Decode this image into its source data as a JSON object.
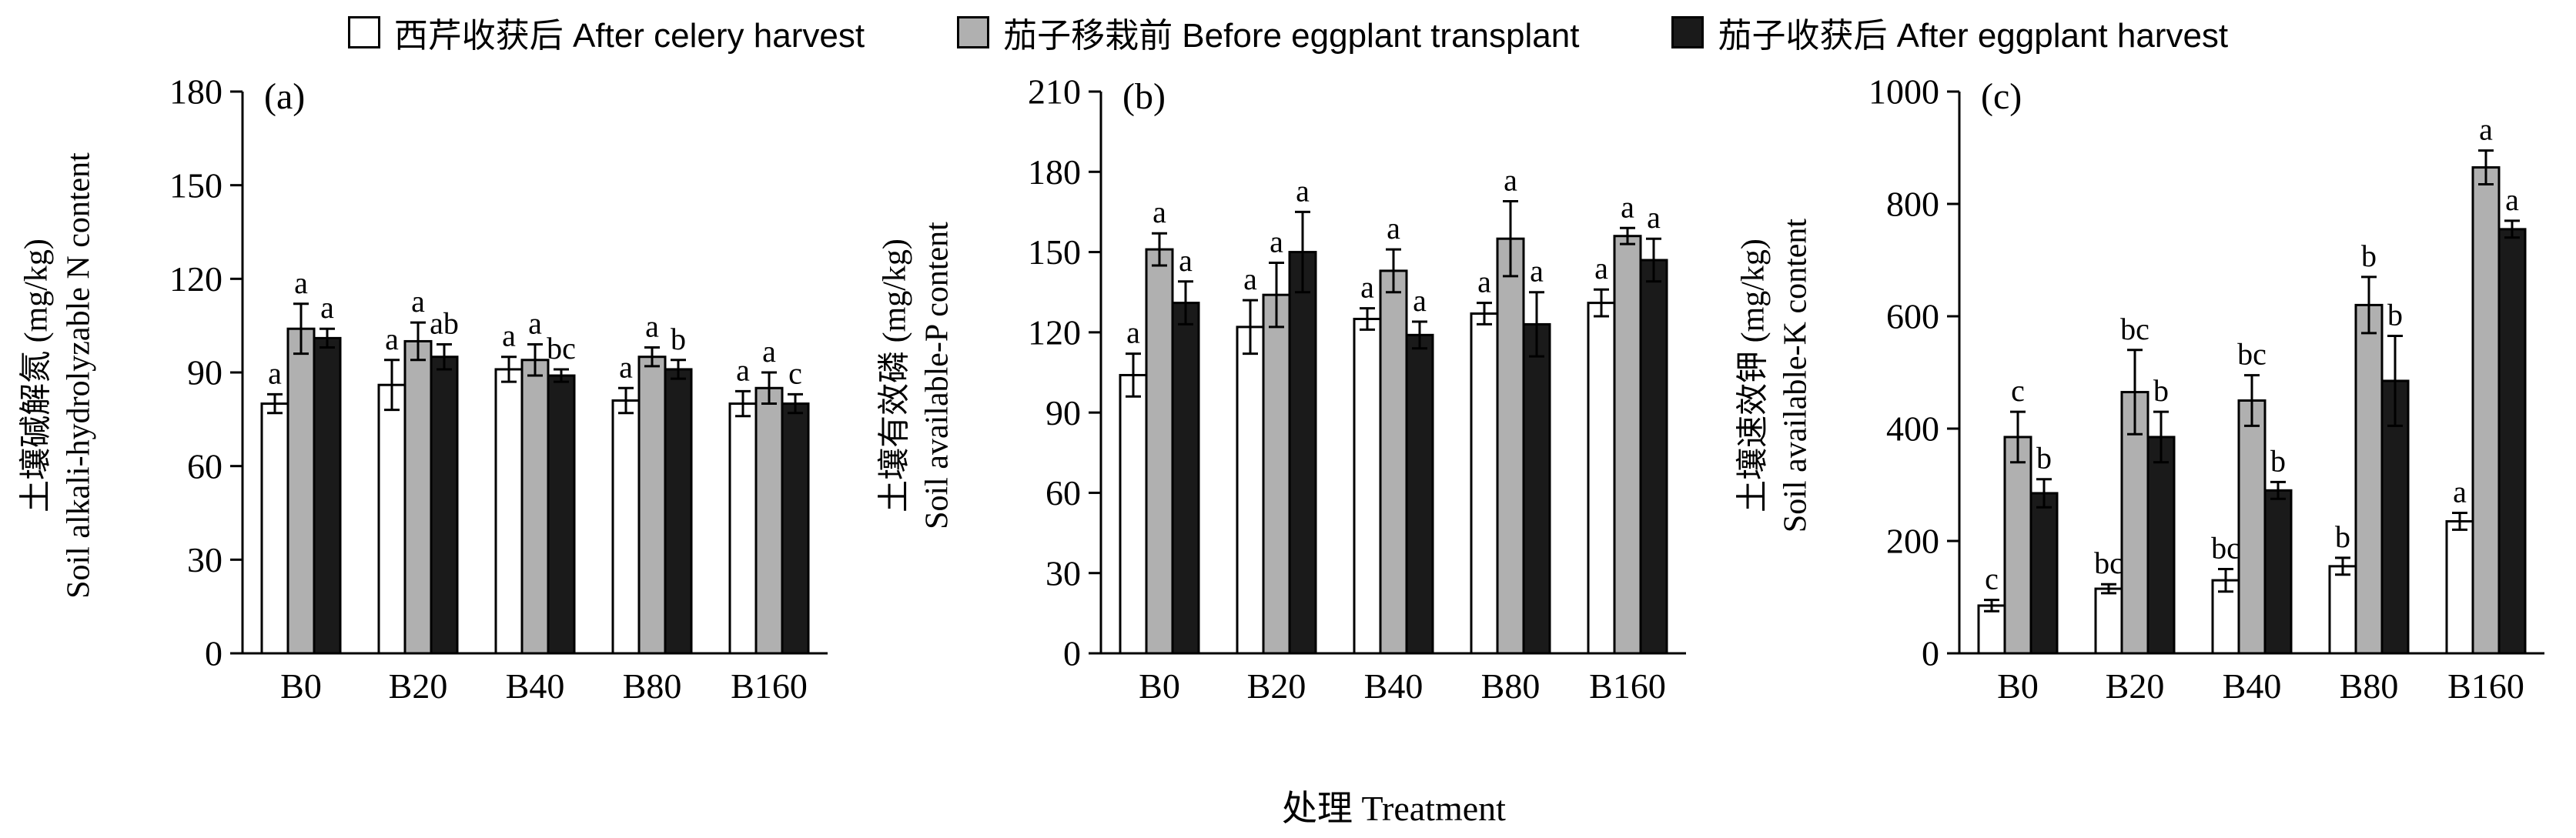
{
  "legend": {
    "items": [
      {
        "label": "西芹收获后 After celery harvest",
        "color": "#ffffff"
      },
      {
        "label": "茄子移栽前 Before eggplant transplant",
        "color": "#b0b0b0"
      },
      {
        "label": "茄子收获后 After eggplant harvest",
        "color": "#1a1a1a"
      }
    ]
  },
  "xtitle": "处理 Treatment",
  "chart_data": [
    {
      "type": "bar",
      "panel_label": "(a)",
      "ylabel_cn": "土壤碱解氮 (mg/kg)",
      "ylabel_en": "Soil alkali-hydrolyzable N content",
      "categories": [
        "B0",
        "B20",
        "B40",
        "B80",
        "B160"
      ],
      "ylim": [
        0,
        180
      ],
      "ytick_step": 30,
      "grid": false,
      "legend_position": "top",
      "series": [
        {
          "name": "西芹收获后 After celery harvest",
          "fill": "#ffffff",
          "values": [
            80,
            86,
            91,
            81,
            80
          ],
          "errors": [
            3,
            8,
            4,
            4,
            4
          ],
          "letters": [
            "a",
            "a",
            "a",
            "a",
            "a"
          ]
        },
        {
          "name": "茄子移栽前 Before eggplant transplant",
          "fill": "#b0b0b0",
          "values": [
            104,
            100,
            94,
            95,
            85
          ],
          "errors": [
            8,
            6,
            5,
            3,
            5
          ],
          "letters": [
            "a",
            "a",
            "a",
            "a",
            "a"
          ]
        },
        {
          "name": "茄子收获后 After eggplant harvest",
          "fill": "#1a1a1a",
          "values": [
            101,
            95,
            89,
            91,
            80
          ],
          "errors": [
            3,
            4,
            2,
            3,
            3
          ],
          "letters": [
            "a",
            "ab",
            "bc",
            "b",
            "c"
          ]
        }
      ]
    },
    {
      "type": "bar",
      "panel_label": "(b)",
      "ylabel_cn": "土壤有效磷 (mg/kg)",
      "ylabel_en": "Soil available-P content",
      "categories": [
        "B0",
        "B20",
        "B40",
        "B80",
        "B160"
      ],
      "ylim": [
        0,
        210
      ],
      "ytick_step": 30,
      "grid": false,
      "legend_position": "top",
      "series": [
        {
          "name": "西芹收获后 After celery harvest",
          "fill": "#ffffff",
          "values": [
            104,
            122,
            125,
            127,
            131
          ],
          "errors": [
            8,
            10,
            4,
            4,
            5
          ],
          "letters": [
            "a",
            "a",
            "a",
            "a",
            "a"
          ]
        },
        {
          "name": "茄子移栽前 Before eggplant transplant",
          "fill": "#b0b0b0",
          "values": [
            151,
            134,
            143,
            155,
            156
          ],
          "errors": [
            6,
            12,
            8,
            14,
            3
          ],
          "letters": [
            "a",
            "a",
            "a",
            "a",
            "a"
          ]
        },
        {
          "name": "茄子收获后 After eggplant harvest",
          "fill": "#1a1a1a",
          "values": [
            131,
            150,
            119,
            123,
            147
          ],
          "errors": [
            8,
            15,
            5,
            12,
            8
          ],
          "letters": [
            "a",
            "a",
            "a",
            "a",
            "a"
          ]
        }
      ]
    },
    {
      "type": "bar",
      "panel_label": "(c)",
      "ylabel_cn": "土壤速效钾 (mg/kg)",
      "ylabel_en": "Soil available-K content",
      "categories": [
        "B0",
        "B20",
        "B40",
        "B80",
        "B160"
      ],
      "ylim": [
        0,
        1000
      ],
      "ytick_step": 200,
      "grid": false,
      "legend_position": "top",
      "series": [
        {
          "name": "西芹收获后 After celery harvest",
          "fill": "#ffffff",
          "values": [
            85,
            115,
            130,
            155,
            235
          ],
          "errors": [
            10,
            8,
            20,
            15,
            15
          ],
          "letters": [
            "c",
            "bc",
            "bc",
            "b",
            "a"
          ]
        },
        {
          "name": "茄子移栽前 Before eggplant transplant",
          "fill": "#b0b0b0",
          "values": [
            385,
            465,
            450,
            620,
            865
          ],
          "errors": [
            45,
            75,
            45,
            50,
            30
          ],
          "letters": [
            "c",
            "bc",
            "bc",
            "b",
            "a"
          ]
        },
        {
          "name": "茄子收获后 After eggplant harvest",
          "fill": "#1a1a1a",
          "values": [
            285,
            385,
            290,
            485,
            755
          ],
          "errors": [
            25,
            45,
            15,
            80,
            15
          ],
          "letters": [
            "b",
            "b",
            "b",
            "b",
            "a"
          ]
        }
      ]
    }
  ]
}
